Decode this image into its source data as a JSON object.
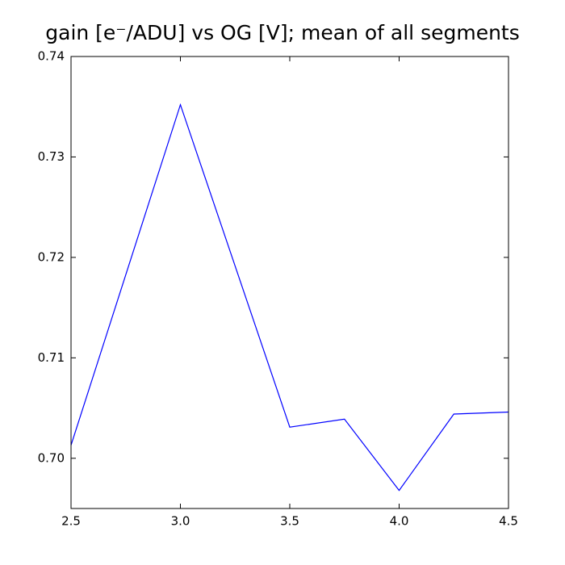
{
  "chart_data": {
    "type": "line",
    "title": "gain [e⁻/ADU] vs OG [V]; mean of all segments",
    "x": [
      2.5,
      3.0,
      3.5,
      3.75,
      4.0,
      4.25,
      4.5
    ],
    "series": [
      {
        "color": "#0000ff",
        "values": [
          0.7013,
          0.7352,
          0.7031,
          0.7039,
          0.6968,
          0.7044,
          0.7046
        ]
      }
    ],
    "xlim": [
      2.5,
      4.5
    ],
    "xticks": [
      2.5,
      {
        "value": 3,
        "label": "3.0"
      },
      3.5,
      {
        "value": 4,
        "label": "4.0"
      },
      4.5
    ],
    "ylim": [
      0.695,
      0.74
    ],
    "yticks": [
      {
        "value": 0.7,
        "label": "0.70"
      },
      0.71,
      0.72,
      0.73,
      0.74
    ],
    "grid": false
  }
}
